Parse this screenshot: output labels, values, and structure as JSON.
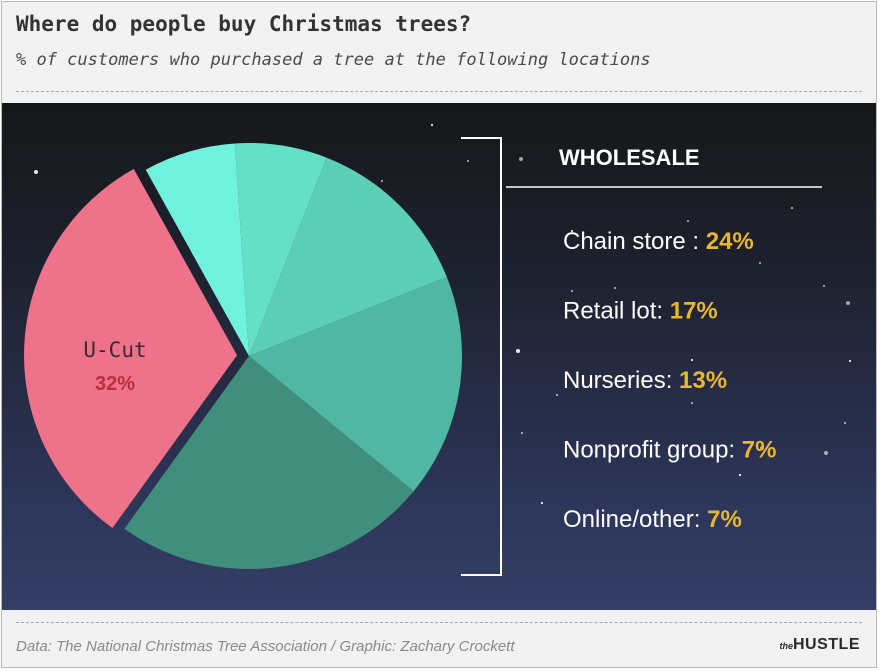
{
  "header": {
    "title": "Where do people buy Christmas trees?",
    "subtitle": "% of customers who purchased a tree at the following locations"
  },
  "footer": {
    "source": "Data: The National Christmas Tree Association / Graphic: Zachary Crockett",
    "brand_small": "the",
    "brand_name": "HUSTLE"
  },
  "chart_data": {
    "type": "pie",
    "title": "Where do people buy Christmas trees?",
    "subtitle": "% of customers who purchased a tree at the following locations",
    "unit": "%",
    "slices": [
      {
        "label": "U-Cut",
        "value": 32,
        "color": "#ee7289",
        "exploded": true
      },
      {
        "label": "Chain store",
        "value": 24,
        "color": "#3f8f7c"
      },
      {
        "label": "Retail lot",
        "value": 17,
        "color": "#4fb7a2"
      },
      {
        "label": "Nurseries",
        "value": 13,
        "color": "#5ccfb6"
      },
      {
        "label": "Nonprofit group",
        "value": 7,
        "color": "#64e0c6"
      },
      {
        "label": "Online/other",
        "value": 7,
        "color": "#70f2df"
      }
    ],
    "group_label": "WHOLESALE",
    "legend": [
      {
        "label": "Chain store :",
        "value": "24%"
      },
      {
        "label": "Retail lot:",
        "value": "17%"
      },
      {
        "label": "Nurseries:",
        "value": "13%"
      },
      {
        "label": "Nonprofit group:",
        "value": "7%"
      },
      {
        "label": "Online/other:",
        "value": "7%"
      }
    ],
    "callout": {
      "label": "U-Cut",
      "value": "32%"
    },
    "colors": {
      "label_white": "#ffffff",
      "value_gold": "#e8b730",
      "callout_label": "#3a2a33",
      "callout_value": "#b82f3e",
      "stars": "#ffffff"
    }
  }
}
